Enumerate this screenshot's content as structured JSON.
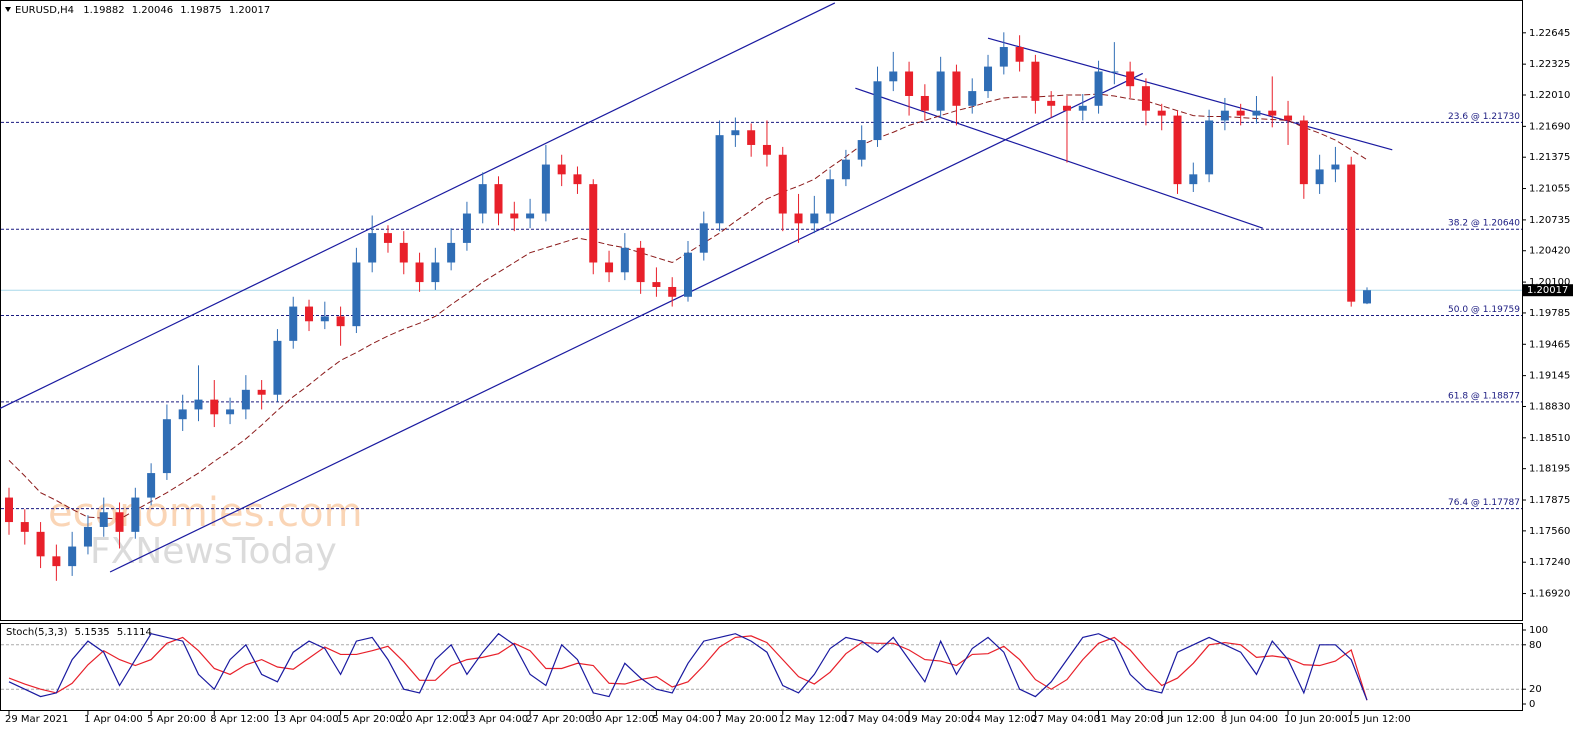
{
  "chart_data": {
    "type": "candlestick",
    "symbol": "EURUSD,H4",
    "categories": [
      "29 Mar 2021",
      null,
      null,
      null,
      null,
      "1 Apr 04:00",
      null,
      null,
      null,
      "5 Apr 20:00",
      null,
      null,
      null,
      "8 Apr 12:00",
      null,
      null,
      null,
      "13 Apr 04:00",
      null,
      null,
      null,
      "15 Apr 20:00",
      null,
      null,
      null,
      "20 Apr 12:00",
      null,
      null,
      null,
      "23 Apr 04:00",
      null,
      null,
      null,
      "27 Apr 20:00",
      null,
      null,
      null,
      "30 Apr 12:00",
      null,
      null,
      null,
      "5 May 04:00",
      null,
      null,
      null,
      "7 May 20:00",
      null,
      null,
      null,
      "12 May 12:00",
      null,
      null,
      null,
      "17 May 04:00",
      null,
      null,
      null,
      "19 May 20:00",
      null,
      null,
      null,
      "24 May 12:00",
      null,
      null,
      null,
      "27 May 04:00",
      null,
      null,
      null,
      "31 May 20:00",
      null,
      null,
      null,
      "3 Jun 12:00",
      null,
      null,
      null,
      "8 Jun 04:00",
      null,
      null,
      null,
      "10 Jun 20:00",
      null,
      null,
      null,
      "15 Jun 12:00",
      null
    ],
    "open": [
      1.179,
      1.1765,
      1.1755,
      1.173,
      1.172,
      1.174,
      1.176,
      1.1775,
      1.1755,
      1.179,
      1.1815,
      1.187,
      1.188,
      1.189,
      1.1875,
      1.188,
      1.19,
      1.1895,
      1.195,
      1.1985,
      1.197,
      1.1975,
      1.1965,
      1.203,
      1.206,
      1.205,
      1.203,
      1.201,
      1.203,
      1.205,
      1.208,
      1.211,
      1.208,
      1.2075,
      1.208,
      1.213,
      1.212,
      1.211,
      1.203,
      1.202,
      1.2045,
      1.201,
      1.2005,
      1.1995,
      1.204,
      1.207,
      1.216,
      1.2165,
      1.215,
      1.214,
      1.208,
      1.207,
      1.208,
      1.2115,
      1.2135,
      1.2155,
      1.2215,
      1.2225,
      1.22,
      1.2185,
      1.2225,
      1.219,
      1.2205,
      1.223,
      1.225,
      1.2235,
      1.2195,
      1.219,
      1.2185,
      1.219,
      1.2225,
      1.2225,
      1.221,
      1.2185,
      1.218,
      1.211,
      1.212,
      1.2175,
      1.2185,
      1.218,
      1.2185,
      1.218,
      1.2175,
      1.211,
      1.2125,
      1.213,
      1.19882
    ],
    "high": [
      1.18,
      1.1778,
      1.1765,
      1.1742,
      1.1755,
      1.1772,
      1.179,
      1.1785,
      1.18,
      1.1825,
      1.1885,
      1.1895,
      1.1925,
      1.191,
      1.1892,
      1.1915,
      1.191,
      1.1962,
      1.1995,
      1.1992,
      1.199,
      1.1985,
      1.2045,
      1.2078,
      1.2068,
      1.2062,
      1.204,
      1.2045,
      1.2065,
      1.2092,
      1.2122,
      1.2118,
      1.2092,
      1.2095,
      1.215,
      1.214,
      1.2128,
      1.2115,
      1.2042,
      1.206,
      1.2052,
      1.2025,
      1.2015,
      1.2052,
      1.2082,
      1.2175,
      1.2178,
      1.2172,
      1.2175,
      1.2148,
      1.21,
      1.2098,
      1.2125,
      1.2145,
      1.217,
      1.223,
      1.2245,
      1.2235,
      1.2212,
      1.224,
      1.2232,
      1.2218,
      1.2242,
      1.2265,
      1.2262,
      1.2242,
      1.2205,
      1.22,
      1.2202,
      1.2236,
      1.2255,
      1.2235,
      1.2218,
      1.2192,
      1.2185,
      1.2132,
      1.2186,
      1.2198,
      1.2192,
      1.22,
      1.222,
      1.2195,
      1.218,
      1.214,
      1.2148,
      1.2138,
      1.20046
    ],
    "low": [
      1.1752,
      1.1742,
      1.1718,
      1.1705,
      1.171,
      1.1732,
      1.175,
      1.1738,
      1.1748,
      1.1782,
      1.1808,
      1.1858,
      1.1868,
      1.1862,
      1.1865,
      1.187,
      1.188,
      1.1888,
      1.1942,
      1.196,
      1.1962,
      1.1945,
      1.1958,
      1.202,
      1.204,
      1.2018,
      1.2,
      1.2002,
      1.2022,
      1.2042,
      1.207,
      1.2068,
      1.2062,
      1.2065,
      1.2072,
      1.2108,
      1.21,
      1.2018,
      1.201,
      1.2012,
      1.1998,
      1.1995,
      1.1985,
      1.199,
      1.2032,
      1.2062,
      1.2148,
      1.2138,
      1.2128,
      1.2062,
      1.205,
      1.206,
      1.2072,
      1.2108,
      1.2128,
      1.2148,
      1.2205,
      1.218,
      1.2175,
      1.2178,
      1.217,
      1.2182,
      1.2198,
      1.2222,
      1.2225,
      1.2182,
      1.2178,
      1.2132,
      1.2175,
      1.2182,
      1.2212,
      1.2198,
      1.217,
      1.2165,
      1.21,
      1.2102,
      1.2112,
      1.2165,
      1.217,
      1.2172,
      1.2168,
      1.215,
      1.2095,
      1.21,
      1.2112,
      1.1985,
      1.19875
    ],
    "close": [
      1.1765,
      1.1755,
      1.173,
      1.172,
      1.174,
      1.176,
      1.1775,
      1.1755,
      1.179,
      1.1815,
      1.187,
      1.188,
      1.189,
      1.1875,
      1.188,
      1.19,
      1.1895,
      1.195,
      1.1985,
      1.197,
      1.1975,
      1.1965,
      1.203,
      1.206,
      1.205,
      1.203,
      1.201,
      1.203,
      1.205,
      1.208,
      1.211,
      1.208,
      1.2075,
      1.208,
      1.213,
      1.212,
      1.211,
      1.203,
      1.202,
      1.2045,
      1.201,
      1.2005,
      1.1995,
      1.204,
      1.207,
      1.216,
      1.2165,
      1.215,
      1.214,
      1.208,
      1.207,
      1.208,
      1.2115,
      1.2135,
      1.2155,
      1.2215,
      1.2225,
      1.22,
      1.2185,
      1.2225,
      1.219,
      1.2205,
      1.223,
      1.225,
      1.2235,
      1.2195,
      1.219,
      1.2185,
      1.219,
      1.2225,
      1.2225,
      1.221,
      1.2185,
      1.218,
      1.211,
      1.212,
      1.2175,
      1.2185,
      1.218,
      1.2185,
      1.218,
      1.2175,
      1.211,
      1.2125,
      1.213,
      1.199,
      1.20017
    ],
    "ma": [
      1.1828,
      1.1812,
      1.1795,
      1.1787,
      1.1778,
      1.177,
      1.1769,
      1.1768,
      1.1777,
      1.1786,
      1.1795,
      1.1805,
      1.1815,
      1.1827,
      1.1838,
      1.185,
      1.1864,
      1.1879,
      1.1893,
      1.1905,
      1.1918,
      1.193,
      1.1938,
      1.1947,
      1.1955,
      1.1962,
      1.1968,
      1.1975,
      1.1987,
      1.1998,
      1.201,
      1.202,
      1.203,
      1.204,
      1.2045,
      1.205,
      1.2055,
      1.2052,
      1.2048,
      1.2045,
      1.204,
      1.2035,
      1.203,
      1.204,
      1.205,
      1.206,
      1.2072,
      1.2083,
      1.2095,
      1.2102,
      1.2108,
      1.2115,
      1.2127,
      1.2138,
      1.215,
      1.2157,
      1.2163,
      1.217,
      1.2175,
      1.218,
      1.2185,
      1.2189,
      1.2194,
      1.2198,
      1.2199,
      1.2199,
      1.22,
      1.2201,
      1.2201,
      1.2202,
      1.22,
      1.2197,
      1.2195,
      1.219,
      1.2185,
      1.218,
      1.2179,
      1.2179,
      1.2178,
      1.2177,
      1.2176,
      1.2175,
      1.2168,
      1.2162,
      1.2155,
      1.2145,
      1.2135
    ],
    "ylim": [
      1.1665,
      1.2298
    ],
    "yticks": [
      1.22645,
      1.22325,
      {
        "value": 1.2201,
        "label": "1.22010"
      },
      {
        "value": 1.2169,
        "label": "1.21690"
      },
      1.21375,
      1.21055,
      1.20735,
      {
        "value": 1.2042,
        "label": "1.20420"
      },
      {
        "value": 1.201,
        "label": "1.20100"
      },
      1.19785,
      1.19465,
      1.19145,
      {
        "value": 1.1883,
        "label": "1.18830"
      },
      {
        "value": 1.1851,
        "label": "1.18510"
      },
      1.18195,
      1.17875,
      {
        "value": 1.1756,
        "label": "1.17560"
      },
      {
        "value": 1.1724,
        "label": "1.17240"
      },
      {
        "value": 1.1692,
        "label": "1.16920"
      }
    ],
    "bull_color": "#2f6db5",
    "bear_color": "#e8202a",
    "ma_color": "#8b1a1a",
    "price_line_color": "#a8d8ea",
    "fib_color": "#1a1a80",
    "fib_levels": [
      {
        "label": "23.6 @ 1.21730",
        "value": 1.2173
      },
      {
        "label": "38.2 @ 1.20640",
        "value": 1.2064
      },
      {
        "label": "50.0 @ 1.19759",
        "value": 1.19759
      },
      {
        "label": "61.8 @ 1.18877",
        "value": 1.18877
      },
      {
        "label": "76.4 @ 1.17787",
        "value": 1.17787
      }
    ],
    "trendline_color": "#1a1aa0",
    "trendlines": [
      {
        "x": [
          -0.57,
          52.3
        ],
        "y": [
          1.1881,
          1.2295
        ]
      },
      {
        "x": [
          6.4,
          71.8
        ],
        "y": [
          1.1714,
          1.2223
        ]
      },
      {
        "x": [
          62.0,
          87.6
        ],
        "y": [
          1.2259,
          1.2145
        ]
      },
      {
        "x": [
          53.6,
          79.4
        ],
        "y": [
          1.2208,
          1.2065
        ]
      }
    ],
    "watermarks": [
      "economies.com",
      "FXNewsToday"
    ],
    "stoch": {
      "title": "Stoch(5,3,3)",
      "ylim": [
        0,
        100
      ],
      "yticks": [
        0,
        20,
        80,
        100
      ],
      "levels": [
        20,
        80
      ],
      "k_color": "#1a1aa0",
      "d_color": "#e8202a",
      "k": [
        30,
        20,
        10,
        15,
        60,
        85,
        70,
        25,
        60,
        95,
        90,
        85,
        40,
        20,
        60,
        80,
        40,
        30,
        70,
        85,
        75,
        40,
        85,
        90,
        60,
        20,
        15,
        60,
        80,
        40,
        70,
        95,
        80,
        40,
        25,
        80,
        60,
        15,
        10,
        55,
        35,
        20,
        15,
        55,
        85,
        90,
        95,
        85,
        70,
        25,
        15,
        40,
        75,
        90,
        85,
        70,
        90,
        60,
        30,
        85,
        40,
        75,
        90,
        70,
        20,
        10,
        30,
        60,
        90,
        95,
        85,
        40,
        20,
        15,
        70,
        80,
        90,
        80,
        70,
        40,
        85,
        60,
        15,
        80,
        80,
        60,
        5.1535
      ],
      "d": [
        35,
        27,
        20,
        15,
        28,
        53,
        72,
        60,
        52,
        60,
        82,
        90,
        72,
        48,
        40,
        53,
        60,
        50,
        47,
        62,
        77,
        67,
        67,
        72,
        78,
        57,
        32,
        32,
        52,
        60,
        63,
        68,
        82,
        72,
        48,
        48,
        55,
        52,
        28,
        27,
        33,
        37,
        23,
        30,
        52,
        77,
        90,
        92,
        83,
        60,
        37,
        27,
        43,
        68,
        83,
        82,
        82,
        73,
        60,
        58,
        52,
        67,
        68,
        78,
        60,
        33,
        20,
        33,
        60,
        82,
        90,
        73,
        48,
        25,
        35,
        55,
        80,
        83,
        80,
        63,
        65,
        62,
        53,
        52,
        58,
        73,
        5.1114
      ]
    }
  }
}
